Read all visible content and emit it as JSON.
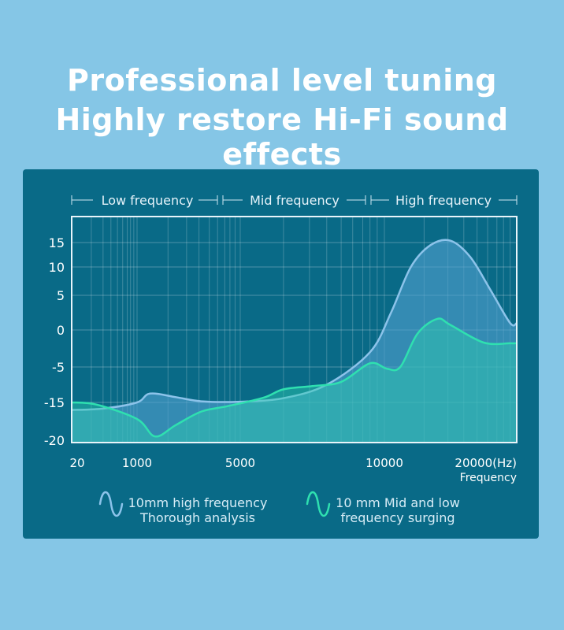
{
  "headline": {
    "line1": "Professional level tuning",
    "line2": "Highly restore Hi-Fi sound effects"
  },
  "bands": [
    "Low frequency",
    "Mid frequency",
    "High frequency"
  ],
  "colors": {
    "page_bg": "#85c6e6",
    "panel_bg": "#096a87",
    "series_high": "#8cc3ea",
    "series_mid_low": "#2fe0b0"
  },
  "legend": {
    "icon_high": "wave-icon",
    "icon_mid_low": "wave-icon",
    "high_line1": "10mm high frequency",
    "high_line2": "Thorough analysis",
    "midlow_line1": "10 mm Mid and low",
    "midlow_line2": "frequency surging"
  },
  "chart_data": {
    "type": "area",
    "title": "",
    "xlabel": "Frequency",
    "ylabel": "",
    "ylim": [
      -20,
      18
    ],
    "y_ticks": [
      "15",
      "10",
      "5",
      "0",
      "-5",
      "-15",
      "-20"
    ],
    "x_ticks": [
      "20",
      "1000",
      "5000",
      "10000",
      "20000(Hz)"
    ],
    "grid": true,
    "bands": [
      "Low frequency",
      "Mid frequency",
      "High frequency"
    ],
    "series": [
      {
        "name": "10mm high frequency Thorough analysis",
        "x": [
          20,
          500,
          1000,
          1500,
          2500,
          3500,
          5000,
          6500,
          8000,
          9500,
          10500,
          12000,
          13500,
          15000,
          16500,
          18000,
          19500
        ],
        "y": [
          -16,
          -15.8,
          -15,
          -12.5,
          -13.5,
          -14.7,
          -14.8,
          -13.8,
          -10,
          -3,
          2.5,
          10,
          14.5,
          15.3,
          12,
          6,
          1
        ]
      },
      {
        "name": "10 mm Mid and low frequency surging",
        "x": [
          20,
          400,
          1000,
          1700,
          2500,
          3500,
          4500,
          5800,
          6500,
          7500,
          8500,
          9500,
          10200,
          11200,
          12500,
          14000,
          15000,
          17500,
          19500
        ],
        "y": [
          -15,
          -15.3,
          -17.2,
          -19.5,
          -18,
          -16.2,
          -15.5,
          -13.7,
          -11.3,
          -10.4,
          -9.2,
          -4.5,
          -5.5,
          -5,
          -0.5,
          1.6,
          0.7,
          -1.7,
          -1.8
        ]
      }
    ]
  }
}
